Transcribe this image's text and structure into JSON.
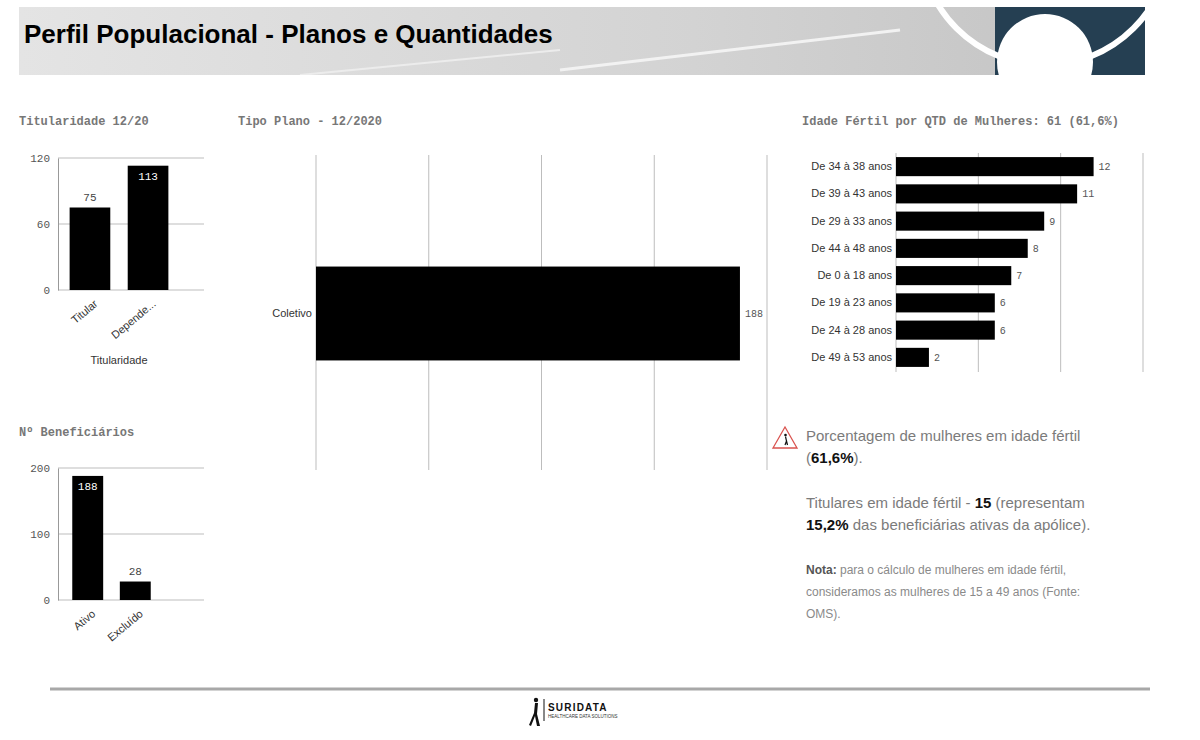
{
  "header": {
    "title": "Perfil Populacional - Planos e Quantidades"
  },
  "chart_data": [
    {
      "type": "bar",
      "title": "Titularidade 12/20",
      "xlabel": "Titularidade",
      "categories": [
        "Titular",
        "Depende..."
      ],
      "values": [
        75,
        113
      ],
      "color": "#000000",
      "ylim": [
        0,
        120
      ],
      "yticks": [
        0,
        60,
        120
      ],
      "grid": true,
      "data_labels": true
    },
    {
      "type": "bar",
      "orientation": "horizontal",
      "title": "Tipo Plano - 12/2020",
      "categories": [
        "Coletivo"
      ],
      "values": [
        188
      ],
      "color": "#000000",
      "xlim": [
        0,
        200
      ],
      "xticks": [
        0,
        50,
        100,
        150,
        200
      ],
      "grid": true,
      "tick_labels": "y",
      "data_labels": true
    },
    {
      "type": "bar",
      "orientation": "horizontal",
      "title": "Idade Fértil por QTD de Mulheres: 61 (61,6%)",
      "categories": [
        "De 34 à 38 anos",
        "De 39 à 43 anos",
        "De 29 à 33 anos",
        "De 44 à 48 anos",
        "De 0 à 18 anos",
        "De 19 à 23 anos",
        "De 24 à 28 anos",
        "De 49 à 53 anos"
      ],
      "values": [
        12,
        11,
        9,
        8,
        7,
        6,
        6,
        2
      ],
      "color": "#000000",
      "xlim": [
        0,
        15
      ],
      "xticks": [
        0,
        5,
        10,
        15
      ],
      "grid": true,
      "tick_labels": "y",
      "data_labels": true
    },
    {
      "type": "bar",
      "title": "Nº Beneficiários",
      "categories": [
        "Ativo",
        "Excluído"
      ],
      "values": [
        188,
        28
      ],
      "color": "#000000",
      "ylim": [
        0,
        200
      ],
      "yticks": [
        0,
        100,
        200
      ],
      "grid": true,
      "data_labels": true
    }
  ],
  "notes": [
    {
      "warning": true,
      "parts": [
        {
          "text": "Porcentagem de mulheres em idade fértil ("
        },
        {
          "text": "61,6%",
          "bold": true
        },
        {
          "text": ")."
        }
      ]
    },
    {
      "parts": [
        {
          "text": "Titulares em idade fértil - "
        },
        {
          "text": "15",
          "bold": true
        },
        {
          "text": " (representam "
        },
        {
          "text": "15,2%",
          "bold": true
        },
        {
          "text": " das beneficiárias ativas da apólice)."
        }
      ]
    },
    {
      "parts": [
        {
          "text": "Nota:",
          "bold": true
        },
        {
          "text": " para o cálculo de mulheres em idade fértil, consideramos as mulheres de 15 a 49 anos (Fonte: OMS)."
        }
      ]
    }
  ],
  "footer": {
    "logo": "SURIDATA",
    "tagline": "HEALTHCARE DATA SOLUTIONS"
  }
}
